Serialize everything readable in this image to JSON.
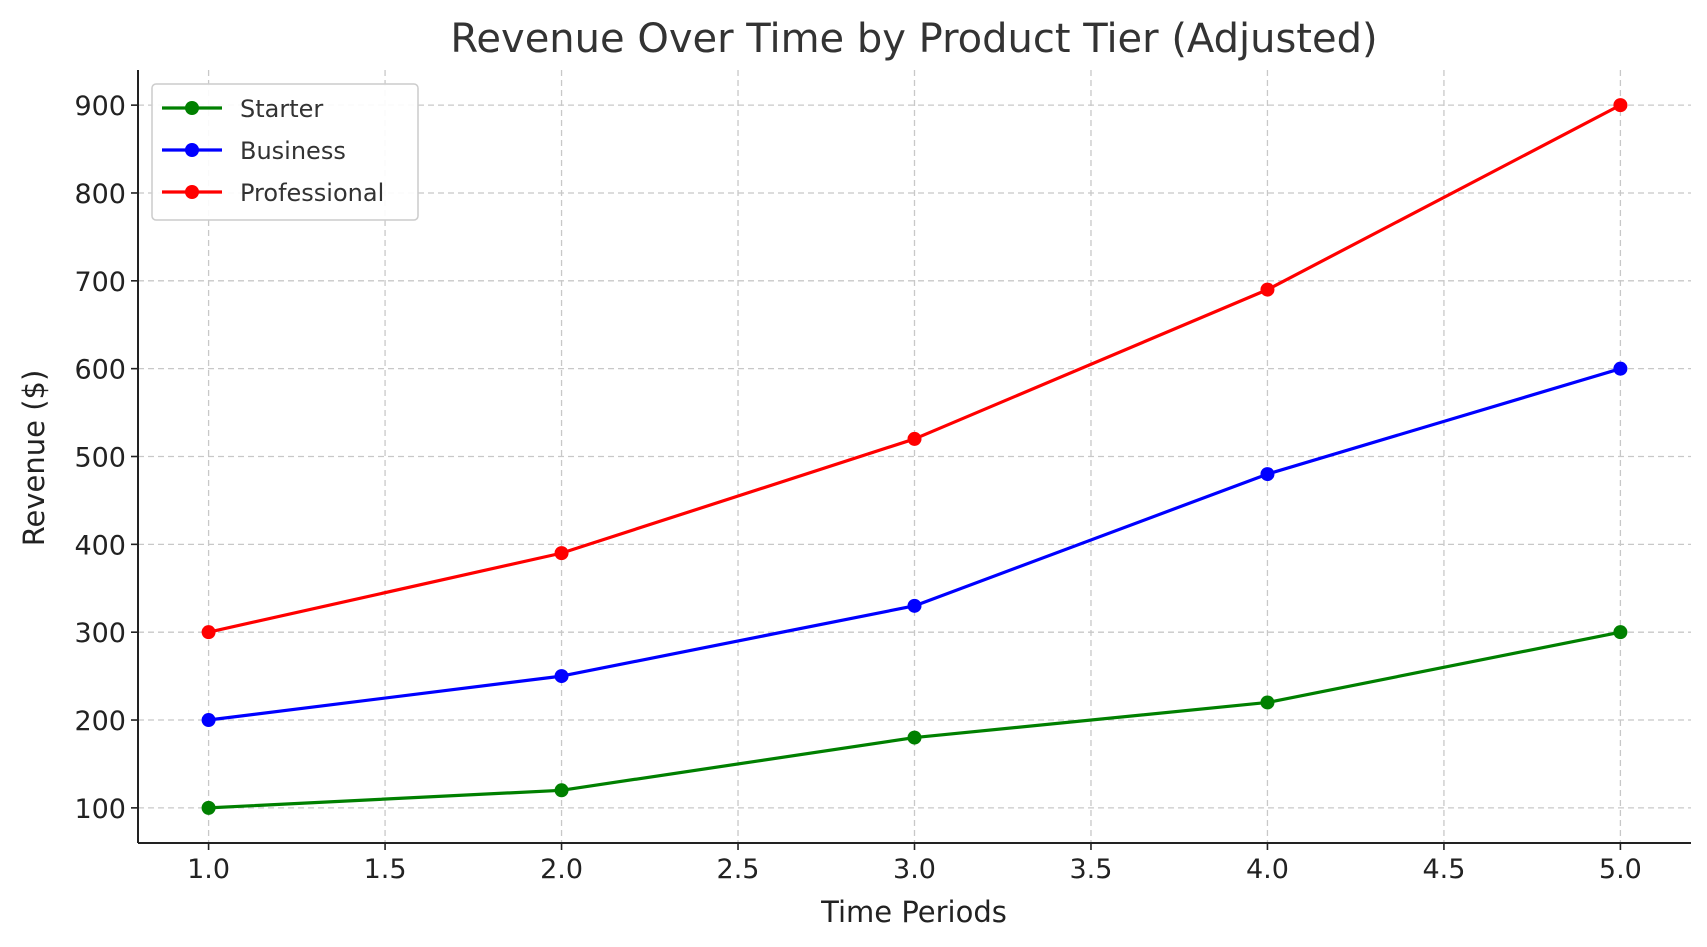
{
  "chart_data": {
    "type": "line",
    "title": "Revenue Over Time by Product Tier (Adjusted)",
    "xlabel": "Time Periods",
    "ylabel": "Revenue ($)",
    "x": [
      1,
      2,
      3,
      4,
      5
    ],
    "xlim": [
      0.8,
      5.2
    ],
    "ylim": [
      60,
      940
    ],
    "xticks": [
      "1.0",
      "1.5",
      "2.0",
      "2.5",
      "3.0",
      "3.5",
      "4.0",
      "4.5",
      "5.0"
    ],
    "xtick_values": [
      1.0,
      1.5,
      2.0,
      2.5,
      3.0,
      3.5,
      4.0,
      4.5,
      5.0
    ],
    "yticks": [
      "100",
      "200",
      "300",
      "400",
      "500",
      "600",
      "700",
      "800",
      "900"
    ],
    "ytick_values": [
      100,
      200,
      300,
      400,
      500,
      600,
      700,
      800,
      900
    ],
    "grid": true,
    "legend_position": "top-left",
    "series": [
      {
        "name": "Starter",
        "color": "#008000",
        "values": [
          100,
          120,
          180,
          220,
          300
        ]
      },
      {
        "name": "Business",
        "color": "#0000ff",
        "values": [
          200,
          250,
          330,
          480,
          600
        ]
      },
      {
        "name": "Professional",
        "color": "#ff0000",
        "values": [
          300,
          390,
          520,
          690,
          900
        ]
      }
    ]
  }
}
